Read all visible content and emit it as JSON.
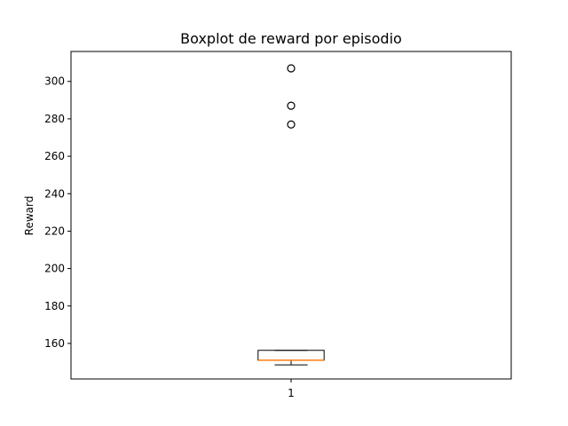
{
  "chart_data": {
    "type": "boxplot",
    "title": "Boxplot de reward por episodio",
    "xlabel": "",
    "ylabel": "Reward",
    "categories": [
      "1"
    ],
    "ylim": [
      141,
      316
    ],
    "yticks": [
      160,
      180,
      200,
      220,
      240,
      260,
      280,
      300
    ],
    "grid": false,
    "boxes": [
      {
        "category": "1",
        "whisker_low": 148.5,
        "q1": 151.0,
        "median": 151.0,
        "q3": 156.3,
        "whisker_high": 156.3,
        "outliers": [
          277,
          287,
          307
        ]
      }
    ],
    "colors": {
      "box": "#000000",
      "median": "#ff7f0e",
      "outlier_edge": "#000000"
    }
  }
}
